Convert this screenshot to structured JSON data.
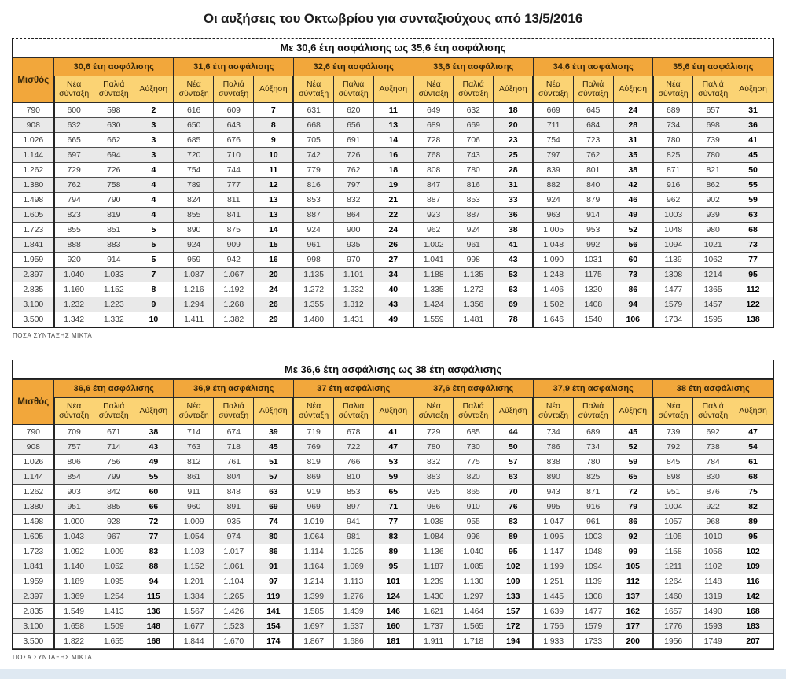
{
  "page": {
    "title": "Οι αυξήσεις του Οκτωβρίου για συνταξιούχους από 13/5/2016"
  },
  "colors": {
    "group_header_bg": "#F2A73B",
    "subheader_bg": "#FBD374",
    "row_alt_bg": "#E9E9E9",
    "bottom_strip_bg": "#DFE9F2"
  },
  "chart_data": [
    {
      "type": "table",
      "title": "Με 30,6 έτη ασφάλισης ως 35,6 έτη ασφάλισης",
      "salary_header": "Μισθός",
      "groups": [
        "30,6 έτη ασφάλισης",
        "31,6 έτη ασφάλισης",
        "32,6 έτη ασφάλισης",
        "33,6 έτη ασφάλισης",
        "34,6 έτη ασφάλισης",
        "35,6 έτη ασφάλισης"
      ],
      "sub_columns": [
        "Νέα σύνταξη",
        "Παλιά σύνταξη",
        "Αύξηση"
      ],
      "footer": "ΠΟΣΑ ΣΥΝΤΑΞΗΣ ΜΙΚΤΑ",
      "rows": [
        {
          "salary": "790",
          "values": [
            "600",
            "598",
            "2",
            "616",
            "609",
            "7",
            "631",
            "620",
            "11",
            "649",
            "632",
            "18",
            "669",
            "645",
            "24",
            "689",
            "657",
            "31"
          ]
        },
        {
          "salary": "908",
          "values": [
            "632",
            "630",
            "3",
            "650",
            "643",
            "8",
            "668",
            "656",
            "13",
            "689",
            "669",
            "20",
            "711",
            "684",
            "28",
            "734",
            "698",
            "36"
          ]
        },
        {
          "salary": "1.026",
          "values": [
            "665",
            "662",
            "3",
            "685",
            "676",
            "9",
            "705",
            "691",
            "14",
            "728",
            "706",
            "23",
            "754",
            "723",
            "31",
            "780",
            "739",
            "41"
          ]
        },
        {
          "salary": "1.144",
          "values": [
            "697",
            "694",
            "3",
            "720",
            "710",
            "10",
            "742",
            "726",
            "16",
            "768",
            "743",
            "25",
            "797",
            "762",
            "35",
            "825",
            "780",
            "45"
          ]
        },
        {
          "salary": "1.262",
          "values": [
            "729",
            "726",
            "4",
            "754",
            "744",
            "11",
            "779",
            "762",
            "18",
            "808",
            "780",
            "28",
            "839",
            "801",
            "38",
            "871",
            "821",
            "50"
          ]
        },
        {
          "salary": "1.380",
          "values": [
            "762",
            "758",
            "4",
            "789",
            "777",
            "12",
            "816",
            "797",
            "19",
            "847",
            "816",
            "31",
            "882",
            "840",
            "42",
            "916",
            "862",
            "55"
          ]
        },
        {
          "salary": "1.498",
          "values": [
            "794",
            "790",
            "4",
            "824",
            "811",
            "13",
            "853",
            "832",
            "21",
            "887",
            "853",
            "33",
            "924",
            "879",
            "46",
            "962",
            "902",
            "59"
          ]
        },
        {
          "salary": "1.605",
          "values": [
            "823",
            "819",
            "4",
            "855",
            "841",
            "13",
            "887",
            "864",
            "22",
            "923",
            "887",
            "36",
            "963",
            "914",
            "49",
            "1003",
            "939",
            "63"
          ]
        },
        {
          "salary": "1.723",
          "values": [
            "855",
            "851",
            "5",
            "890",
            "875",
            "14",
            "924",
            "900",
            "24",
            "962",
            "924",
            "38",
            "1.005",
            "953",
            "52",
            "1048",
            "980",
            "68"
          ]
        },
        {
          "salary": "1.841",
          "values": [
            "888",
            "883",
            "5",
            "924",
            "909",
            "15",
            "961",
            "935",
            "26",
            "1.002",
            "961",
            "41",
            "1.048",
            "992",
            "56",
            "1094",
            "1021",
            "73"
          ]
        },
        {
          "salary": "1.959",
          "values": [
            "920",
            "914",
            "5",
            "959",
            "942",
            "16",
            "998",
            "970",
            "27",
            "1.041",
            "998",
            "43",
            "1.090",
            "1031",
            "60",
            "1139",
            "1062",
            "77"
          ]
        },
        {
          "salary": "2.397",
          "values": [
            "1.040",
            "1.033",
            "7",
            "1.087",
            "1.067",
            "20",
            "1.135",
            "1.101",
            "34",
            "1.188",
            "1.135",
            "53",
            "1.248",
            "1175",
            "73",
            "1308",
            "1214",
            "95"
          ]
        },
        {
          "salary": "2.835",
          "values": [
            "1.160",
            "1.152",
            "8",
            "1.216",
            "1.192",
            "24",
            "1.272",
            "1.232",
            "40",
            "1.335",
            "1.272",
            "63",
            "1.406",
            "1320",
            "86",
            "1477",
            "1365",
            "112"
          ]
        },
        {
          "salary": "3.100",
          "values": [
            "1.232",
            "1.223",
            "9",
            "1.294",
            "1.268",
            "26",
            "1.355",
            "1.312",
            "43",
            "1.424",
            "1.356",
            "69",
            "1.502",
            "1408",
            "94",
            "1579",
            "1457",
            "122"
          ]
        },
        {
          "salary": "3.500",
          "values": [
            "1.342",
            "1.332",
            "10",
            "1.411",
            "1.382",
            "29",
            "1.480",
            "1.431",
            "49",
            "1.559",
            "1.481",
            "78",
            "1.646",
            "1540",
            "106",
            "1734",
            "1595",
            "138"
          ]
        }
      ]
    },
    {
      "type": "table",
      "title": "Με 36,6 έτη ασφάλισης ως 38 έτη ασφάλισης",
      "salary_header": "Μισθός",
      "groups": [
        "36,6 έτη ασφάλισης",
        "36,9 έτη ασφάλισης",
        "37 έτη ασφάλισης",
        "37,6 έτη ασφάλισης",
        "37,9 έτη ασφάλισης",
        "38 έτη ασφάλισης"
      ],
      "sub_columns": [
        "Νέα σύνταξη",
        "Παλιά σύνταξη",
        "Αύξηση"
      ],
      "footer": "ΠΟΣΑ ΣΥΝΤΑΞΗΣ ΜΙΚΤΑ",
      "rows": [
        {
          "salary": "790",
          "values": [
            "709",
            "671",
            "38",
            "714",
            "674",
            "39",
            "719",
            "678",
            "41",
            "729",
            "685",
            "44",
            "734",
            "689",
            "45",
            "739",
            "692",
            "47"
          ]
        },
        {
          "salary": "908",
          "values": [
            "757",
            "714",
            "43",
            "763",
            "718",
            "45",
            "769",
            "722",
            "47",
            "780",
            "730",
            "50",
            "786",
            "734",
            "52",
            "792",
            "738",
            "54"
          ]
        },
        {
          "salary": "1.026",
          "values": [
            "806",
            "756",
            "49",
            "812",
            "761",
            "51",
            "819",
            "766",
            "53",
            "832",
            "775",
            "57",
            "838",
            "780",
            "59",
            "845",
            "784",
            "61"
          ]
        },
        {
          "salary": "1.144",
          "values": [
            "854",
            "799",
            "55",
            "861",
            "804",
            "57",
            "869",
            "810",
            "59",
            "883",
            "820",
            "63",
            "890",
            "825",
            "65",
            "898",
            "830",
            "68"
          ]
        },
        {
          "salary": "1.262",
          "values": [
            "903",
            "842",
            "60",
            "911",
            "848",
            "63",
            "919",
            "853",
            "65",
            "935",
            "865",
            "70",
            "943",
            "871",
            "72",
            "951",
            "876",
            "75"
          ]
        },
        {
          "salary": "1.380",
          "values": [
            "951",
            "885",
            "66",
            "960",
            "891",
            "69",
            "969",
            "897",
            "71",
            "986",
            "910",
            "76",
            "995",
            "916",
            "79",
            "1004",
            "922",
            "82"
          ]
        },
        {
          "salary": "1.498",
          "values": [
            "1.000",
            "928",
            "72",
            "1.009",
            "935",
            "74",
            "1.019",
            "941",
            "77",
            "1.038",
            "955",
            "83",
            "1.047",
            "961",
            "86",
            "1057",
            "968",
            "89"
          ]
        },
        {
          "salary": "1.605",
          "values": [
            "1.043",
            "967",
            "77",
            "1.054",
            "974",
            "80",
            "1.064",
            "981",
            "83",
            "1.084",
            "996",
            "89",
            "1.095",
            "1003",
            "92",
            "1105",
            "1010",
            "95"
          ]
        },
        {
          "salary": "1.723",
          "values": [
            "1.092",
            "1.009",
            "83",
            "1.103",
            "1.017",
            "86",
            "1.114",
            "1.025",
            "89",
            "1.136",
            "1.040",
            "95",
            "1.147",
            "1048",
            "99",
            "1158",
            "1056",
            "102"
          ]
        },
        {
          "salary": "1.841",
          "values": [
            "1.140",
            "1.052",
            "88",
            "1.152",
            "1.061",
            "91",
            "1.164",
            "1.069",
            "95",
            "1.187",
            "1.085",
            "102",
            "1.199",
            "1094",
            "105",
            "1211",
            "1102",
            "109"
          ]
        },
        {
          "salary": "1.959",
          "values": [
            "1.189",
            "1.095",
            "94",
            "1.201",
            "1.104",
            "97",
            "1.214",
            "1.113",
            "101",
            "1.239",
            "1.130",
            "109",
            "1.251",
            "1139",
            "112",
            "1264",
            "1148",
            "116"
          ]
        },
        {
          "salary": "2.397",
          "values": [
            "1.369",
            "1.254",
            "115",
            "1.384",
            "1.265",
            "119",
            "1.399",
            "1.276",
            "124",
            "1.430",
            "1.297",
            "133",
            "1.445",
            "1308",
            "137",
            "1460",
            "1319",
            "142"
          ]
        },
        {
          "salary": "2.835",
          "values": [
            "1.549",
            "1.413",
            "136",
            "1.567",
            "1.426",
            "141",
            "1.585",
            "1.439",
            "146",
            "1.621",
            "1.464",
            "157",
            "1.639",
            "1477",
            "162",
            "1657",
            "1490",
            "168"
          ]
        },
        {
          "salary": "3.100",
          "values": [
            "1.658",
            "1.509",
            "148",
            "1.677",
            "1.523",
            "154",
            "1.697",
            "1.537",
            "160",
            "1.737",
            "1.565",
            "172",
            "1.756",
            "1579",
            "177",
            "1776",
            "1593",
            "183"
          ]
        },
        {
          "salary": "3.500",
          "values": [
            "1.822",
            "1.655",
            "168",
            "1.844",
            "1.670",
            "174",
            "1.867",
            "1.686",
            "181",
            "1.911",
            "1.718",
            "194",
            "1.933",
            "1733",
            "200",
            "1956",
            "1749",
            "207"
          ]
        }
      ]
    }
  ]
}
